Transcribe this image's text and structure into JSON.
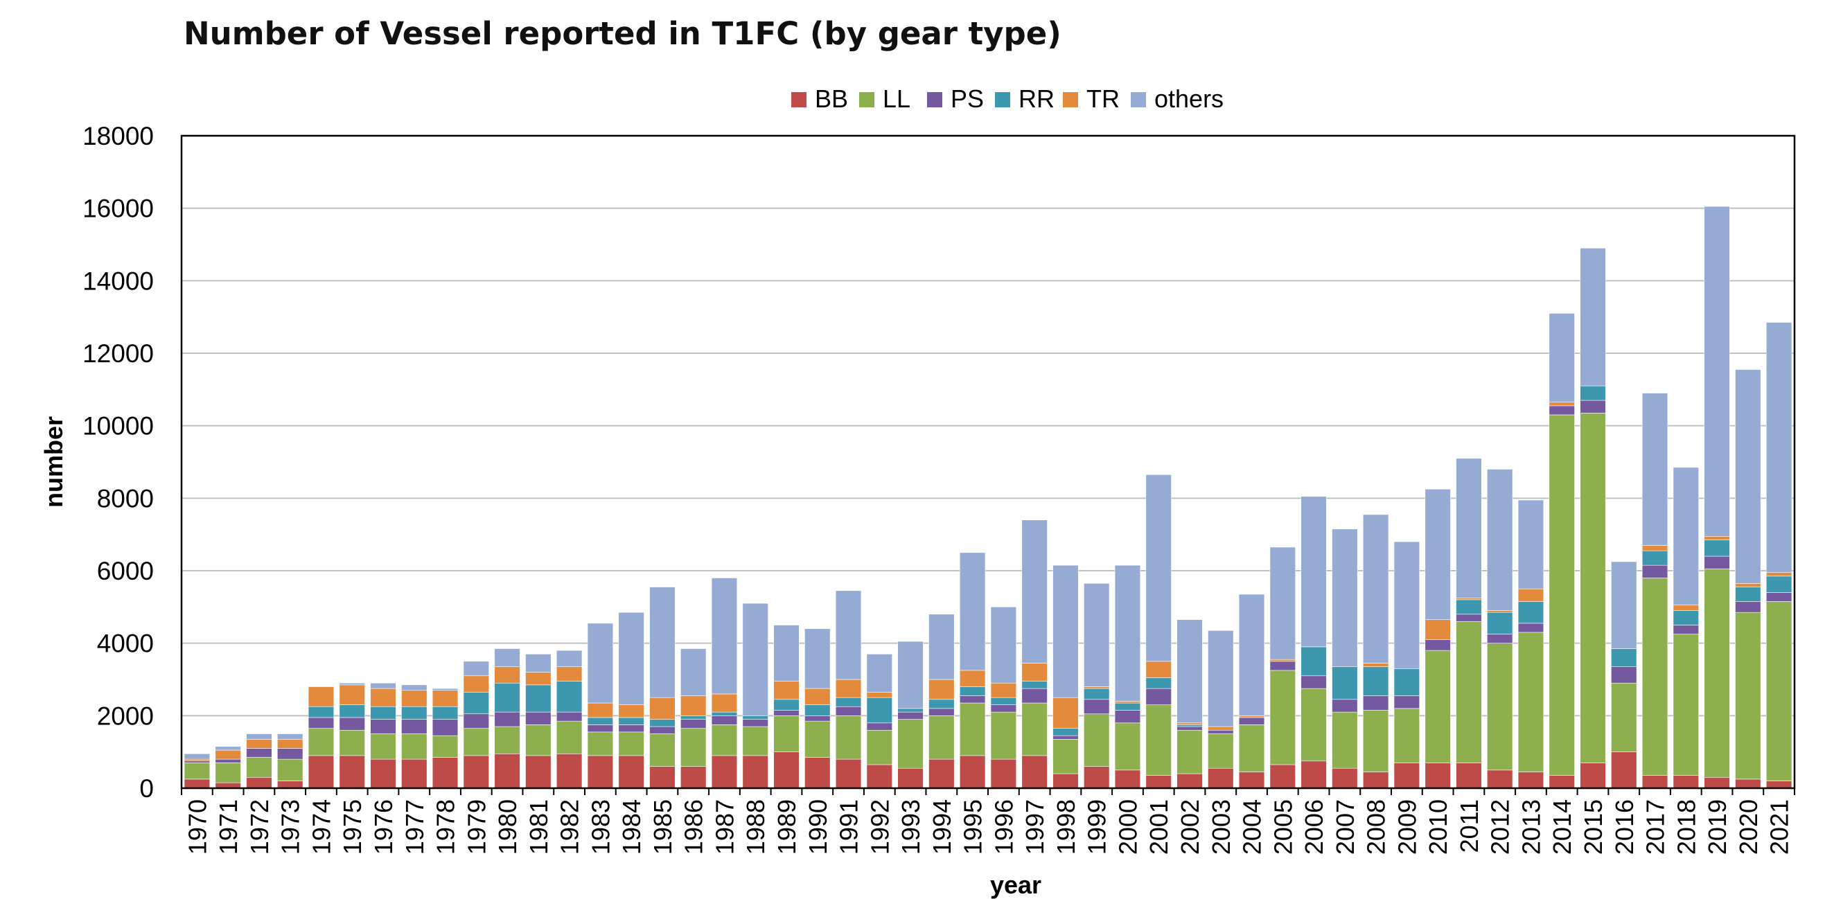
{
  "chart_data": {
    "type": "bar",
    "stacked": true,
    "title": "Number of Vessel reported in T1FC (by gear type)",
    "xlabel": "year",
    "ylabel": "number",
    "ylim": [
      0,
      18000
    ],
    "yticks": [
      0,
      2000,
      4000,
      6000,
      8000,
      10000,
      12000,
      14000,
      16000,
      18000
    ],
    "grid": true,
    "legend": "top-center",
    "categories": [
      "1970",
      "1971",
      "1972",
      "1973",
      "1974",
      "1975",
      "1976",
      "1977",
      "1978",
      "1979",
      "1980",
      "1981",
      "1982",
      "1983",
      "1984",
      "1985",
      "1986",
      "1987",
      "1988",
      "1989",
      "1990",
      "1991",
      "1992",
      "1993",
      "1994",
      "1995",
      "1996",
      "1997",
      "1998",
      "1999",
      "2000",
      "2001",
      "2002",
      "2003",
      "2004",
      "2005",
      "2006",
      "2007",
      "2008",
      "2009",
      "2010",
      "2011",
      "2012",
      "2013",
      "2014",
      "2015",
      "2016",
      "2017",
      "2018",
      "2019",
      "2020",
      "2021"
    ],
    "series": [
      {
        "name": "BB",
        "color": "#BE4B48",
        "values": [
          250,
          150,
          300,
          200,
          900,
          900,
          800,
          800,
          850,
          900,
          950,
          900,
          950,
          900,
          900,
          600,
          600,
          900,
          900,
          1000,
          850,
          800,
          650,
          550,
          800,
          900,
          800,
          900,
          400,
          600,
          500,
          350,
          400,
          550,
          450,
          650,
          750,
          550,
          450,
          700,
          700,
          700,
          500,
          450,
          350,
          700,
          1000,
          350,
          350,
          300,
          250,
          200
        ]
      },
      {
        "name": "LL",
        "color": "#8DAF4E",
        "values": [
          450,
          550,
          550,
          600,
          750,
          700,
          700,
          700,
          600,
          750,
          750,
          850,
          900,
          650,
          650,
          900,
          1050,
          850,
          800,
          1000,
          1000,
          1200,
          950,
          1350,
          1200,
          1450,
          1300,
          1450,
          950,
          1450,
          1300,
          1950,
          1200,
          950,
          1300,
          2600,
          2000,
          1550,
          1700,
          1500,
          3100,
          3900,
          3500,
          3850,
          9950,
          9650,
          1900,
          5450,
          3900,
          5750,
          4600,
          4950
        ]
      },
      {
        "name": "PS",
        "color": "#7458A0",
        "values": [
          50,
          100,
          250,
          300,
          300,
          350,
          400,
          400,
          450,
          400,
          400,
          350,
          250,
          200,
          200,
          200,
          250,
          250,
          200,
          150,
          150,
          250,
          200,
          200,
          200,
          200,
          200,
          400,
          100,
          400,
          350,
          450,
          100,
          100,
          200,
          250,
          350,
          350,
          400,
          350,
          300,
          200,
          250,
          250,
          250,
          350,
          450,
          350,
          250,
          350,
          300,
          250
        ]
      },
      {
        "name": "RR",
        "color": "#3D97AF",
        "values": [
          0,
          0,
          0,
          0,
          300,
          350,
          350,
          350,
          350,
          600,
          800,
          750,
          850,
          200,
          200,
          200,
          100,
          100,
          100,
          300,
          300,
          250,
          700,
          100,
          250,
          250,
          200,
          200,
          200,
          300,
          200,
          300,
          50,
          0,
          0,
          0,
          800,
          900,
          800,
          750,
          0,
          400,
          600,
          600,
          0,
          400,
          500,
          400,
          400,
          450,
          400,
          450
        ]
      },
      {
        "name": "TR",
        "color": "#E48A3C",
        "values": [
          50,
          250,
          250,
          250,
          550,
          550,
          500,
          450,
          450,
          450,
          450,
          350,
          400,
          400,
          350,
          600,
          550,
          500,
          0,
          500,
          450,
          500,
          150,
          0,
          550,
          450,
          400,
          500,
          850,
          50,
          50,
          450,
          50,
          100,
          50,
          50,
          0,
          0,
          100,
          0,
          550,
          50,
          50,
          350,
          100,
          0,
          0,
          150,
          150,
          100,
          100,
          100
        ]
      },
      {
        "name": "others",
        "color": "#95ABD4",
        "values": [
          150,
          100,
          150,
          150,
          0,
          50,
          150,
          150,
          50,
          400,
          500,
          500,
          450,
          2200,
          2550,
          3050,
          1300,
          3200,
          3100,
          1550,
          1650,
          2450,
          1050,
          1850,
          1800,
          3250,
          2100,
          3950,
          3650,
          2850,
          3750,
          5150,
          2850,
          2650,
          3350,
          3100,
          4150,
          3800,
          4100,
          3500,
          3600,
          3850,
          3900,
          2450,
          2450,
          3800,
          2400,
          4200,
          3800,
          9100,
          5900,
          6900
        ]
      }
    ]
  }
}
